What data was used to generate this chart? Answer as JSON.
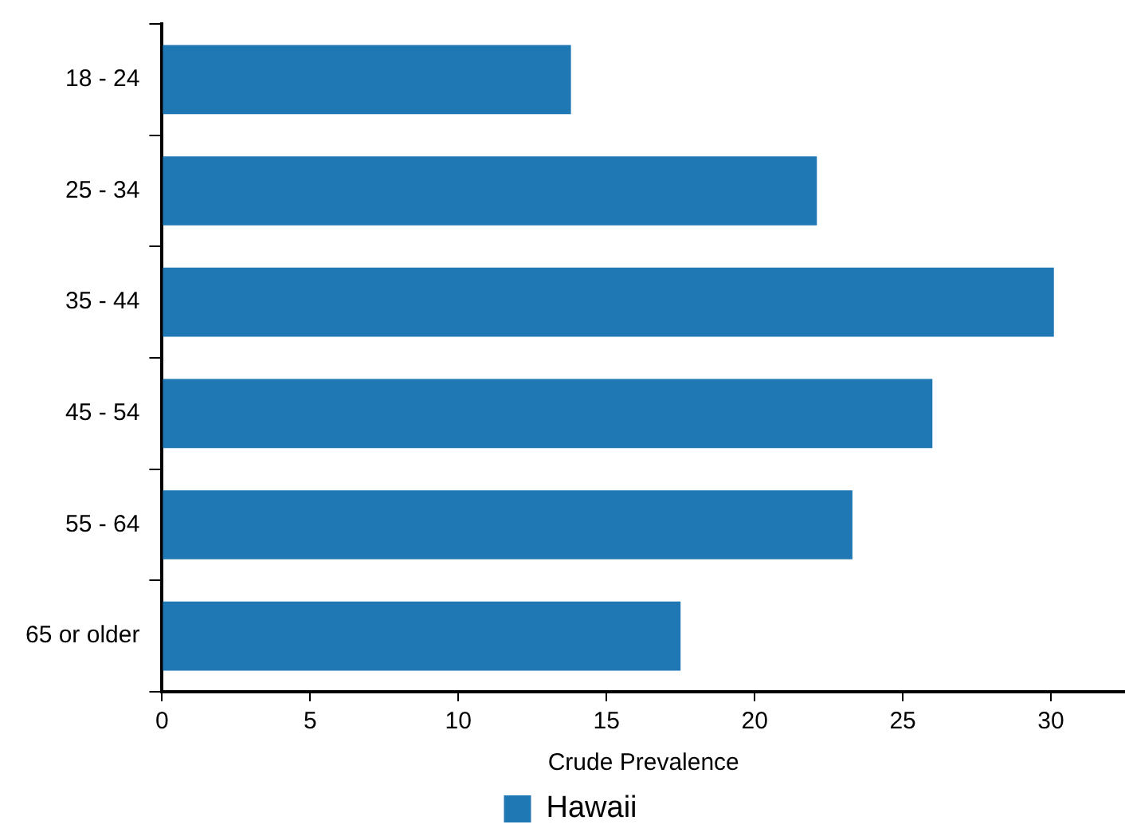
{
  "chart_data": {
    "type": "bar",
    "orientation": "horizontal",
    "xlabel": "Crude Prevalence",
    "categories": [
      "18 - 24",
      "25 - 34",
      "35 - 44",
      "45 - 54",
      "55 - 64",
      "65 or older"
    ],
    "series": [
      {
        "name": "Hawaii",
        "color": "#1f77b4",
        "values": [
          13.8,
          22.1,
          30.1,
          26.0,
          23.3,
          17.5
        ]
      }
    ],
    "xlim": [
      0,
      32.5
    ],
    "xticks": [
      0,
      5,
      10,
      15,
      20,
      25,
      30
    ],
    "grid": false,
    "legend": "bottom"
  }
}
